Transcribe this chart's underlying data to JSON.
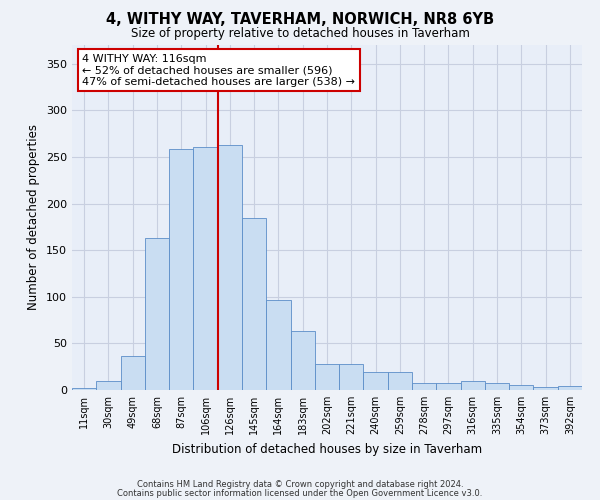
{
  "title": "4, WITHY WAY, TAVERHAM, NORWICH, NR8 6YB",
  "subtitle": "Size of property relative to detached houses in Taverham",
  "xlabel": "Distribution of detached houses by size in Taverham",
  "ylabel": "Number of detached properties",
  "categories": [
    "11sqm",
    "30sqm",
    "49sqm",
    "68sqm",
    "87sqm",
    "106sqm",
    "126sqm",
    "145sqm",
    "164sqm",
    "183sqm",
    "202sqm",
    "221sqm",
    "240sqm",
    "259sqm",
    "278sqm",
    "297sqm",
    "316sqm",
    "335sqm",
    "354sqm",
    "373sqm",
    "392sqm"
  ],
  "bar_heights": [
    2,
    10,
    36,
    163,
    258,
    261,
    263,
    184,
    97,
    63,
    28,
    28,
    19,
    19,
    8,
    7,
    10,
    7,
    5,
    3,
    4
  ],
  "bar_color": "#c9ddf2",
  "bar_edge_color": "#5b8dc8",
  "property_line_x": 5.5,
  "property_label": "4 WITHY WAY: 116sqm",
  "annotation_line1": "← 52% of detached houses are smaller (596)",
  "annotation_line2": "47% of semi-detached houses are larger (538) →",
  "annotation_box_color": "#ffffff",
  "annotation_box_edge": "#cc0000",
  "vline_color": "#cc0000",
  "ylim": [
    0,
    370
  ],
  "yticks": [
    0,
    50,
    100,
    150,
    200,
    250,
    300,
    350
  ],
  "footer1": "Contains HM Land Registry data © Crown copyright and database right 2024.",
  "footer2": "Contains public sector information licensed under the Open Government Licence v3.0.",
  "bg_color": "#eef2f8",
  "plot_bg_color": "#e8eef8"
}
